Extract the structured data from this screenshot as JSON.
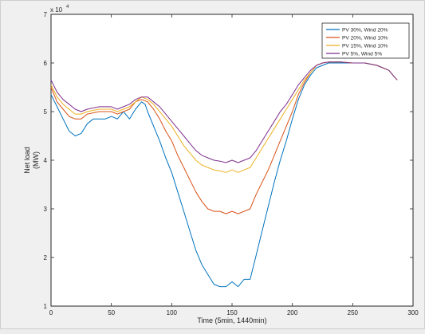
{
  "chart_data": {
    "type": "line",
    "xlabel": "Time (5min, 1440min)",
    "ylabel_lines": [
      "Net load",
      "(MW)"
    ],
    "x_ticks": [
      "0",
      "50",
      "100",
      "150",
      "200",
      "250",
      "300"
    ],
    "y_ticks": [
      "1",
      "2",
      "3",
      "4",
      "5",
      "6",
      "7"
    ],
    "y_exponent": {
      "base": "x 10",
      "power": "4"
    },
    "xlim": [
      0,
      300
    ],
    "ylim": [
      1,
      7
    ],
    "y_scale_factor": 10000,
    "legend_position": "top-right",
    "grid": false,
    "series": [
      {
        "name": "PV 30%, Wind 20%",
        "color": "#0072BD",
        "points": [
          [
            0,
            5.35
          ],
          [
            5,
            5.1
          ],
          [
            10,
            4.85
          ],
          [
            15,
            4.6
          ],
          [
            20,
            4.5
          ],
          [
            25,
            4.55
          ],
          [
            30,
            4.75
          ],
          [
            35,
            4.85
          ],
          [
            40,
            4.85
          ],
          [
            45,
            4.85
          ],
          [
            50,
            4.9
          ],
          [
            55,
            4.85
          ],
          [
            60,
            5.0
          ],
          [
            65,
            4.85
          ],
          [
            70,
            5.05
          ],
          [
            75,
            5.2
          ],
          [
            78,
            5.15
          ],
          [
            80,
            5.0
          ],
          [
            85,
            4.7
          ],
          [
            90,
            4.4
          ],
          [
            95,
            4.05
          ],
          [
            100,
            3.75
          ],
          [
            105,
            3.35
          ],
          [
            110,
            2.95
          ],
          [
            115,
            2.55
          ],
          [
            120,
            2.15
          ],
          [
            125,
            1.85
          ],
          [
            130,
            1.65
          ],
          [
            135,
            1.45
          ],
          [
            140,
            1.4
          ],
          [
            145,
            1.4
          ],
          [
            150,
            1.5
          ],
          [
            155,
            1.4
          ],
          [
            160,
            1.55
          ],
          [
            165,
            1.55
          ],
          [
            170,
            2.05
          ],
          [
            175,
            2.55
          ],
          [
            180,
            3.05
          ],
          [
            185,
            3.55
          ],
          [
            190,
            4.0
          ],
          [
            195,
            4.4
          ],
          [
            200,
            4.85
          ],
          [
            205,
            5.25
          ],
          [
            210,
            5.55
          ],
          [
            215,
            5.75
          ],
          [
            220,
            5.9
          ],
          [
            225,
            5.95
          ],
          [
            230,
            6.0
          ],
          [
            240,
            6.0
          ],
          [
            250,
            6.0
          ],
          [
            260,
            6.0
          ],
          [
            270,
            5.95
          ],
          [
            280,
            5.85
          ],
          [
            285,
            5.7
          ],
          [
            287,
            5.65
          ]
        ]
      },
      {
        "name": "PV 20%, Wind 10%",
        "color": "#D95319",
        "points": [
          [
            0,
            5.5
          ],
          [
            5,
            5.2
          ],
          [
            10,
            5.05
          ],
          [
            15,
            4.9
          ],
          [
            20,
            4.85
          ],
          [
            25,
            4.85
          ],
          [
            30,
            4.95
          ],
          [
            40,
            5.0
          ],
          [
            50,
            5.0
          ],
          [
            55,
            4.95
          ],
          [
            60,
            5.0
          ],
          [
            65,
            5.05
          ],
          [
            70,
            5.2
          ],
          [
            75,
            5.25
          ],
          [
            80,
            5.2
          ],
          [
            85,
            5.05
          ],
          [
            90,
            4.85
          ],
          [
            95,
            4.6
          ],
          [
            100,
            4.4
          ],
          [
            105,
            4.1
          ],
          [
            110,
            3.85
          ],
          [
            115,
            3.6
          ],
          [
            120,
            3.35
          ],
          [
            125,
            3.15
          ],
          [
            130,
            3.0
          ],
          [
            135,
            2.95
          ],
          [
            140,
            2.95
          ],
          [
            145,
            2.9
          ],
          [
            150,
            2.95
          ],
          [
            155,
            2.9
          ],
          [
            160,
            2.95
          ],
          [
            165,
            3.0
          ],
          [
            170,
            3.3
          ],
          [
            175,
            3.55
          ],
          [
            180,
            3.8
          ],
          [
            185,
            4.1
          ],
          [
            190,
            4.4
          ],
          [
            195,
            4.7
          ],
          [
            200,
            5.0
          ],
          [
            205,
            5.35
          ],
          [
            210,
            5.6
          ],
          [
            215,
            5.8
          ],
          [
            220,
            5.95
          ],
          [
            225,
            6.0
          ],
          [
            230,
            6.02
          ],
          [
            240,
            6.02
          ],
          [
            250,
            6.0
          ],
          [
            260,
            6.0
          ],
          [
            270,
            5.95
          ],
          [
            280,
            5.85
          ],
          [
            285,
            5.7
          ],
          [
            287,
            5.65
          ]
        ]
      },
      {
        "name": "PV 15%, Wind 10%",
        "color": "#EDB120",
        "points": [
          [
            0,
            5.55
          ],
          [
            5,
            5.3
          ],
          [
            10,
            5.15
          ],
          [
            15,
            5.05
          ],
          [
            20,
            4.95
          ],
          [
            25,
            4.95
          ],
          [
            30,
            5.0
          ],
          [
            40,
            5.05
          ],
          [
            50,
            5.05
          ],
          [
            55,
            5.0
          ],
          [
            60,
            5.05
          ],
          [
            65,
            5.1
          ],
          [
            70,
            5.2
          ],
          [
            75,
            5.3
          ],
          [
            80,
            5.25
          ],
          [
            85,
            5.15
          ],
          [
            90,
            5.0
          ],
          [
            95,
            4.85
          ],
          [
            100,
            4.7
          ],
          [
            105,
            4.5
          ],
          [
            110,
            4.3
          ],
          [
            115,
            4.15
          ],
          [
            120,
            4.0
          ],
          [
            125,
            3.9
          ],
          [
            130,
            3.85
          ],
          [
            135,
            3.8
          ],
          [
            140,
            3.78
          ],
          [
            145,
            3.75
          ],
          [
            150,
            3.8
          ],
          [
            155,
            3.75
          ],
          [
            160,
            3.8
          ],
          [
            165,
            3.85
          ],
          [
            170,
            4.05
          ],
          [
            175,
            4.25
          ],
          [
            180,
            4.45
          ],
          [
            185,
            4.65
          ],
          [
            190,
            4.85
          ],
          [
            195,
            5.05
          ],
          [
            200,
            5.25
          ],
          [
            205,
            5.45
          ],
          [
            210,
            5.65
          ],
          [
            215,
            5.8
          ],
          [
            220,
            5.95
          ],
          [
            225,
            6.0
          ],
          [
            230,
            6.02
          ],
          [
            240,
            6.02
          ],
          [
            250,
            6.0
          ],
          [
            260,
            6.0
          ],
          [
            270,
            5.95
          ],
          [
            280,
            5.85
          ],
          [
            285,
            5.7
          ],
          [
            287,
            5.65
          ]
        ]
      },
      {
        "name": "PV 5%, Wind 5%",
        "color": "#7E2F8E",
        "points": [
          [
            0,
            5.65
          ],
          [
            5,
            5.4
          ],
          [
            10,
            5.25
          ],
          [
            15,
            5.15
          ],
          [
            20,
            5.05
          ],
          [
            25,
            5.0
          ],
          [
            30,
            5.05
          ],
          [
            40,
            5.1
          ],
          [
            50,
            5.1
          ],
          [
            55,
            5.05
          ],
          [
            60,
            5.1
          ],
          [
            65,
            5.15
          ],
          [
            70,
            5.25
          ],
          [
            75,
            5.3
          ],
          [
            80,
            5.3
          ],
          [
            85,
            5.2
          ],
          [
            90,
            5.1
          ],
          [
            95,
            4.95
          ],
          [
            100,
            4.8
          ],
          [
            105,
            4.65
          ],
          [
            110,
            4.5
          ],
          [
            115,
            4.35
          ],
          [
            120,
            4.2
          ],
          [
            125,
            4.1
          ],
          [
            130,
            4.05
          ],
          [
            135,
            4.0
          ],
          [
            140,
            3.98
          ],
          [
            145,
            3.95
          ],
          [
            150,
            4.0
          ],
          [
            155,
            3.95
          ],
          [
            160,
            4.0
          ],
          [
            165,
            4.05
          ],
          [
            170,
            4.2
          ],
          [
            175,
            4.4
          ],
          [
            180,
            4.6
          ],
          [
            185,
            4.8
          ],
          [
            190,
            5.0
          ],
          [
            195,
            5.15
          ],
          [
            200,
            5.35
          ],
          [
            205,
            5.55
          ],
          [
            210,
            5.7
          ],
          [
            215,
            5.85
          ],
          [
            220,
            5.95
          ],
          [
            225,
            6.0
          ],
          [
            230,
            6.02
          ],
          [
            240,
            6.02
          ],
          [
            250,
            6.0
          ],
          [
            260,
            6.0
          ],
          [
            270,
            5.95
          ],
          [
            280,
            5.85
          ],
          [
            285,
            5.7
          ],
          [
            287,
            5.65
          ]
        ]
      }
    ]
  }
}
